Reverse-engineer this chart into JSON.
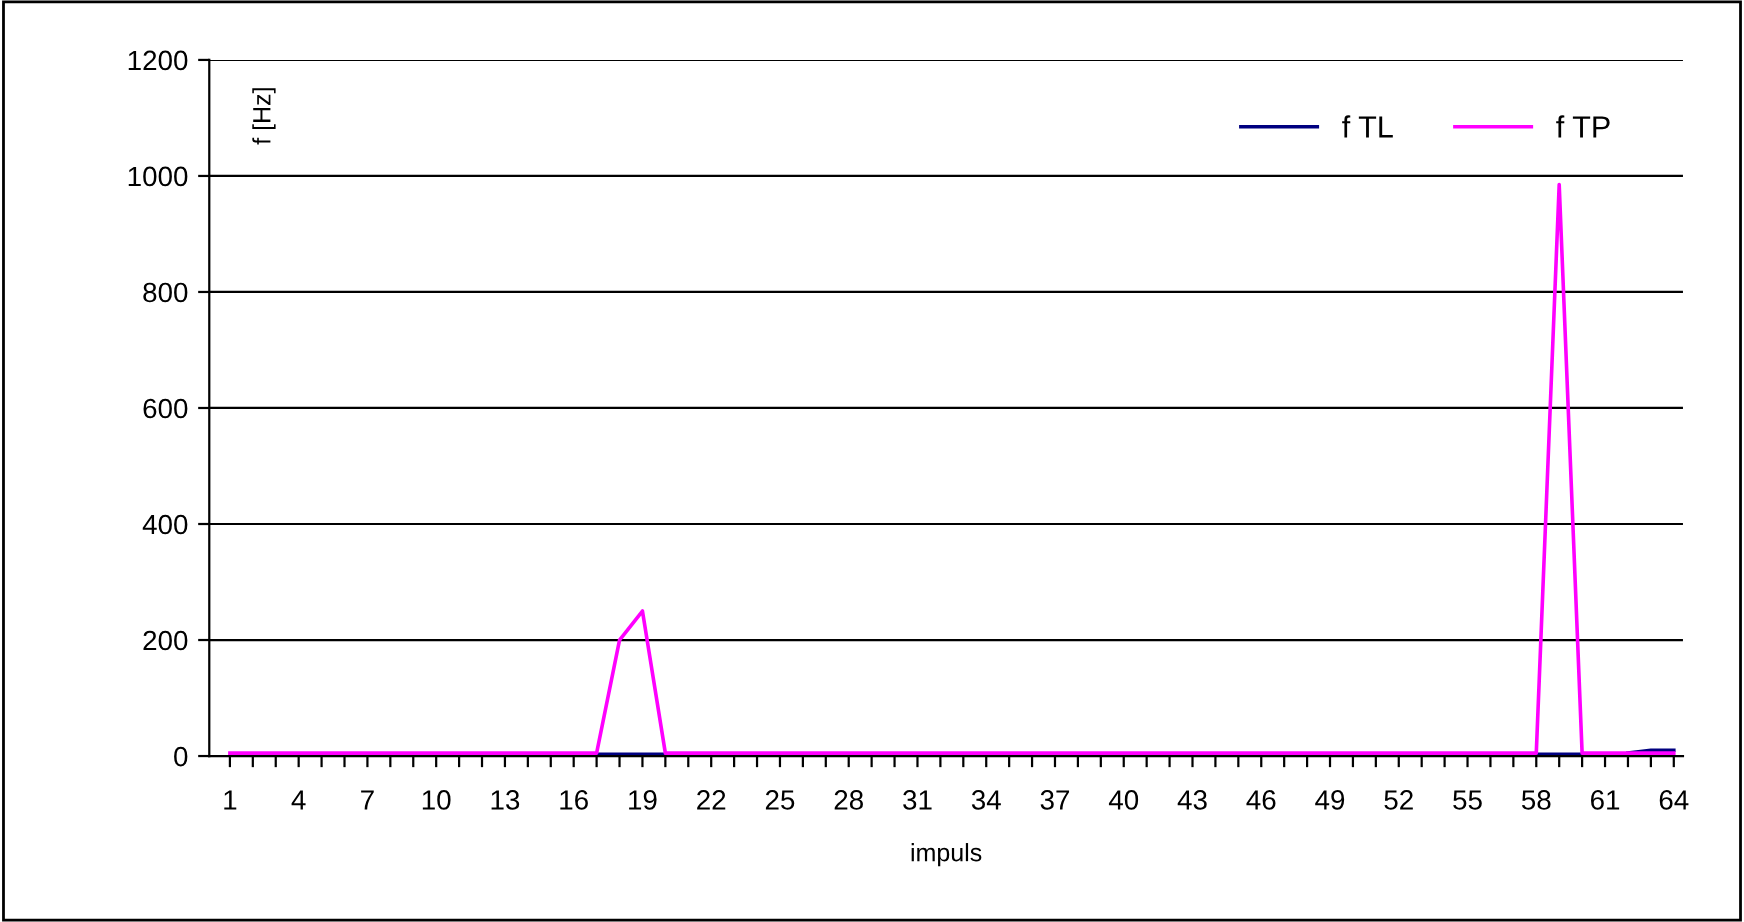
{
  "chart_data": {
    "type": "line",
    "xlabel": "impuls",
    "ylabel": "f [Hz]",
    "categories": [
      "1",
      null,
      null,
      "4",
      null,
      null,
      "7",
      null,
      null,
      "10",
      null,
      null,
      "13",
      null,
      null,
      "16",
      null,
      null,
      "19",
      null,
      null,
      "22",
      null,
      null,
      "25",
      null,
      null,
      "28",
      null,
      null,
      "31",
      null,
      null,
      "34",
      null,
      null,
      "37",
      null,
      null,
      "40",
      null,
      null,
      "43",
      null,
      null,
      "46",
      null,
      null,
      "49",
      null,
      null,
      "52",
      null,
      null,
      "55",
      null,
      null,
      "58",
      null,
      null,
      "61",
      null,
      null,
      "64"
    ],
    "series": [
      {
        "name": "f TL",
        "color": "#000080",
        "values": [
          null,
          null,
          null,
          null,
          null,
          null,
          null,
          null,
          null,
          null,
          null,
          null,
          null,
          null,
          null,
          null,
          3,
          3,
          3,
          3,
          null,
          null,
          null,
          null,
          null,
          null,
          null,
          null,
          null,
          null,
          null,
          null,
          null,
          null,
          null,
          null,
          null,
          null,
          null,
          null,
          null,
          null,
          null,
          null,
          null,
          null,
          null,
          null,
          null,
          null,
          null,
          null,
          null,
          null,
          null,
          null,
          null,
          3,
          3,
          3,
          null,
          5,
          10,
          10
        ]
      },
      {
        "name": "f TP",
        "color": "#ff00ff",
        "values": [
          5,
          5,
          5,
          5,
          5,
          5,
          5,
          5,
          5,
          5,
          5,
          5,
          5,
          5,
          5,
          5,
          5,
          200,
          250,
          5,
          5,
          5,
          5,
          5,
          5,
          5,
          5,
          5,
          5,
          5,
          5,
          5,
          5,
          5,
          5,
          5,
          5,
          5,
          5,
          5,
          5,
          5,
          5,
          5,
          5,
          5,
          5,
          5,
          5,
          5,
          5,
          5,
          5,
          5,
          5,
          5,
          5,
          5,
          985,
          5,
          5,
          5,
          5,
          5
        ]
      }
    ],
    "ylim": [
      0,
      1200
    ],
    "yticks": [
      0,
      200,
      400,
      600,
      800,
      1000,
      1200
    ],
    "grid": "y",
    "legend": "top right",
    "marker": "none",
    "line_style": "solid"
  }
}
